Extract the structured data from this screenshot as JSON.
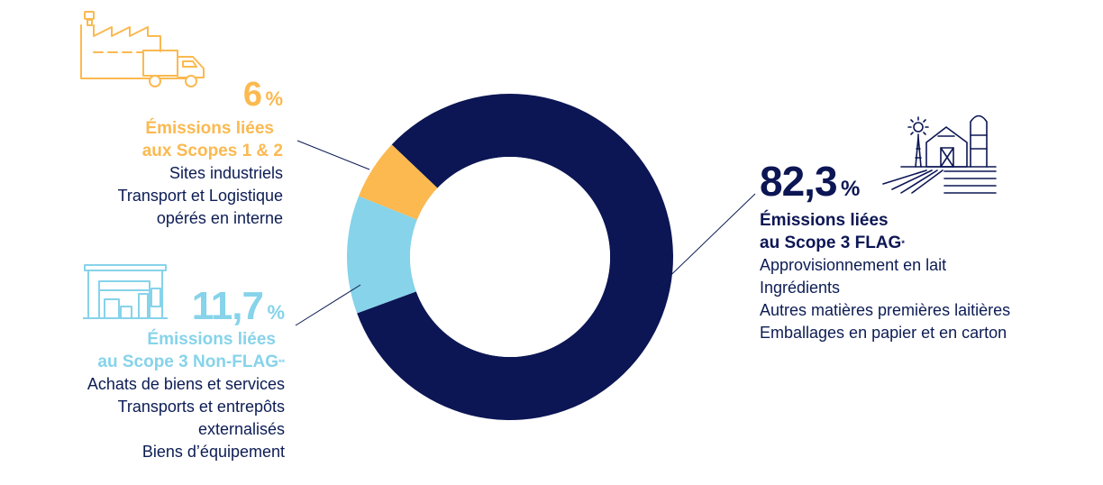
{
  "colors": {
    "flag": "#0c1654",
    "non_flag": "#86d3ea",
    "scopes12": "#fbb950",
    "text_dark": "#0c1c54",
    "connector": "#0c1c54"
  },
  "icons": {
    "scopes12": "factory-truck-icon",
    "non_flag": "warehouse-icon",
    "flag": "farm-icon"
  },
  "chart_data": {
    "type": "pie",
    "donut": true,
    "categories": [
      "Émissions liées au Scope 3 FLAG",
      "Émissions liées au Scope 3 Non-FLAG",
      "Émissions liées aux Scopes 1 & 2"
    ],
    "values": [
      82.3,
      11.7,
      6
    ],
    "unit": "%"
  },
  "segments": {
    "scopes12": {
      "value": "6",
      "unit": "%",
      "heading_line1": "Émissions liées",
      "heading_line2": "aux Scopes 1 & 2",
      "details": [
        "Sites industriels",
        "Transport et Logistique",
        "opérés en interne"
      ]
    },
    "non_flag": {
      "value": "11,7",
      "unit": "%",
      "heading_line1": "Émissions liées",
      "heading_line2": "au Scope 3 Non-FLAG",
      "footnote_mark": "**",
      "details": [
        "Achats de biens et services",
        "Transports et entrepôts",
        "externalisés",
        "Biens d’équipement"
      ]
    },
    "flag": {
      "value": "82,3",
      "unit": "%",
      "heading_line1": "Émissions liées",
      "heading_line2": "au Scope 3 FLAG",
      "footnote_mark": "*",
      "details": [
        "Approvisionnement en lait",
        "Ingrédients",
        "Autres matières premières laitières",
        "Emballages en papier et en carton"
      ]
    }
  }
}
